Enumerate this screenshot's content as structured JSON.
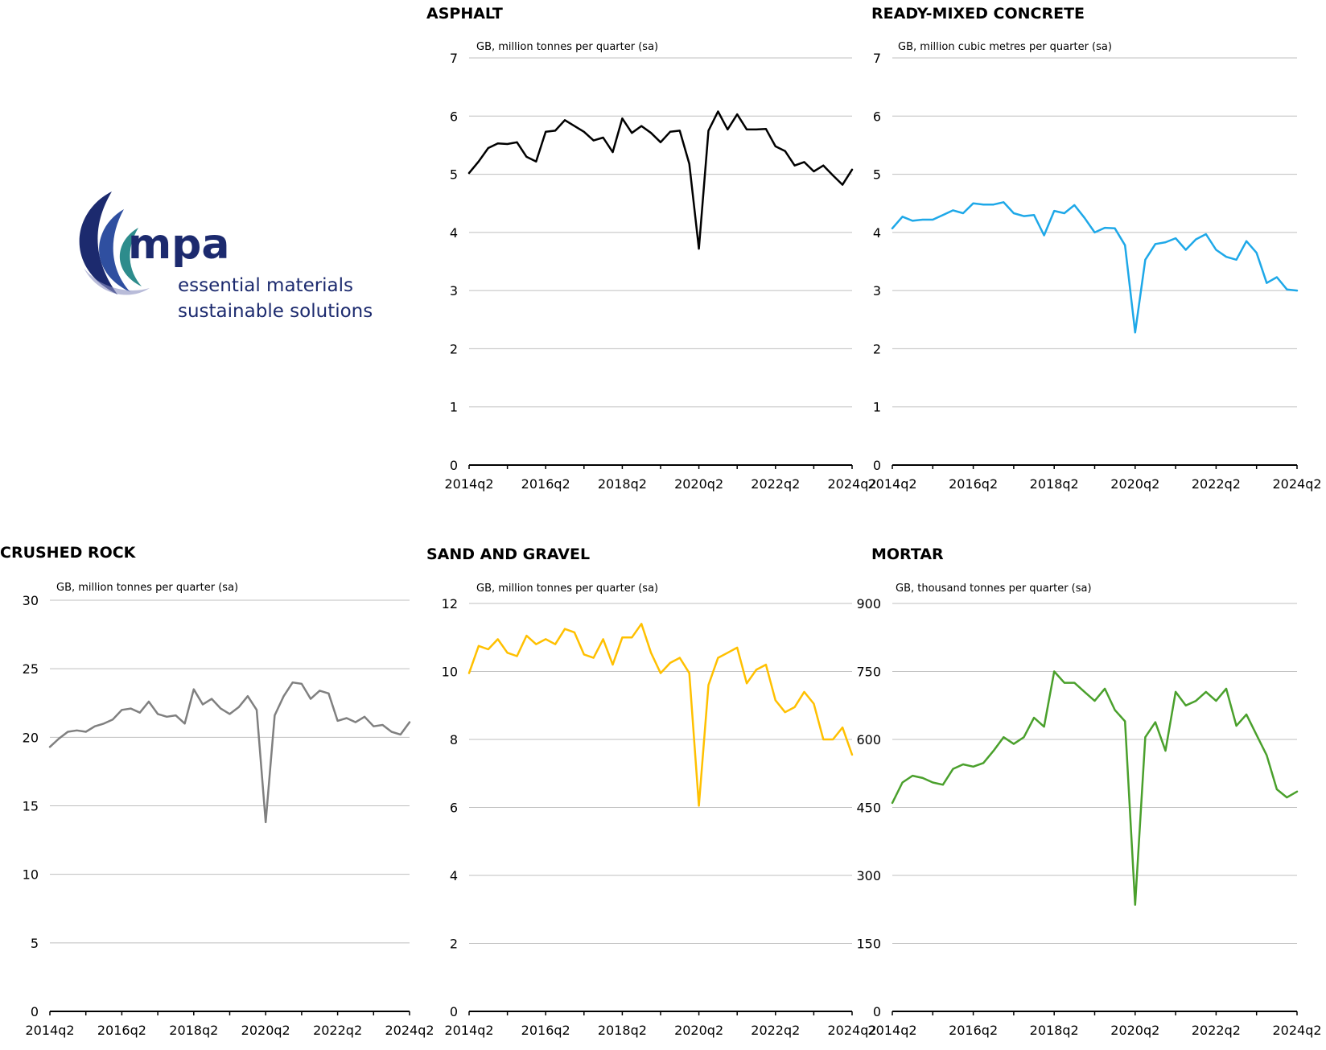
{
  "logo": {
    "wordmark": "mpa",
    "tagline_1": "essential materials",
    "tagline_2": "sustainable solutions",
    "colors": {
      "navy": "#1c2a6e",
      "teal": "#2d8c8c",
      "blue": "#2f4fa0"
    }
  },
  "chart_data": [
    {
      "id": "asphalt",
      "type": "line",
      "title": "ASPHALT",
      "subtitle": "GB, million tonnes per quarter (sa)",
      "color": "#000000",
      "ylim": [
        0,
        7
      ],
      "yticks": [
        0,
        1,
        2,
        3,
        4,
        5,
        6,
        7
      ],
      "xlabels": [
        "2014q2",
        "2016q2",
        "2018q2",
        "2020q2",
        "2022q2",
        "2024q2"
      ],
      "values": [
        5.02,
        5.22,
        5.45,
        5.53,
        5.52,
        5.55,
        5.3,
        5.22,
        5.73,
        5.75,
        5.93,
        5.83,
        5.73,
        5.58,
        5.63,
        5.38,
        5.96,
        5.71,
        5.83,
        5.71,
        5.55,
        5.73,
        5.75,
        5.18,
        3.72,
        5.75,
        6.08,
        5.77,
        6.03,
        5.77,
        5.77,
        5.78,
        5.48,
        5.4,
        5.15,
        5.21,
        5.05,
        5.15,
        4.98,
        4.82,
        5.08
      ]
    },
    {
      "id": "ready-mixed-concrete",
      "type": "line",
      "title": "READY-MIXED CONCRETE",
      "subtitle": "GB, million cubic metres per quarter (sa)",
      "color": "#1ea8e8",
      "ylim": [
        0,
        7
      ],
      "yticks": [
        0,
        1,
        2,
        3,
        4,
        5,
        6,
        7
      ],
      "xlabels": [
        "2014q2",
        "2016q2",
        "2018q2",
        "2020q2",
        "2022q2",
        "2024q2"
      ],
      "values": [
        4.07,
        4.27,
        4.2,
        4.22,
        4.22,
        4.3,
        4.38,
        4.33,
        4.5,
        4.48,
        4.48,
        4.52,
        4.33,
        4.28,
        4.3,
        3.95,
        4.37,
        4.33,
        4.47,
        4.25,
        4.0,
        4.08,
        4.07,
        3.78,
        2.28,
        3.53,
        3.8,
        3.83,
        3.9,
        3.7,
        3.88,
        3.97,
        3.7,
        3.58,
        3.53,
        3.85,
        3.65,
        3.13,
        3.23,
        3.02,
        3.0
      ]
    },
    {
      "id": "crushed-rock",
      "type": "line",
      "title": "CRUSHED ROCK",
      "subtitle": "GB, million tonnes per quarter (sa)",
      "color": "#808080",
      "ylim": [
        0,
        30
      ],
      "yticks": [
        0,
        5,
        10,
        15,
        20,
        25,
        30
      ],
      "xlabels": [
        "2014q2",
        "2016q2",
        "2018q2",
        "2020q2",
        "2022q2",
        "2024q2"
      ],
      "values": [
        19.3,
        19.9,
        20.4,
        20.5,
        20.4,
        20.8,
        21.0,
        21.3,
        22.0,
        22.1,
        21.8,
        22.6,
        21.7,
        21.5,
        21.6,
        21.0,
        23.5,
        22.4,
        22.8,
        22.1,
        21.7,
        22.2,
        23.0,
        22.0,
        13.8,
        21.6,
        23.0,
        24.0,
        23.9,
        22.8,
        23.4,
        23.2,
        21.2,
        21.4,
        21.1,
        21.5,
        20.8,
        20.9,
        20.4,
        20.2,
        21.1
      ]
    },
    {
      "id": "sand-and-gravel",
      "type": "line",
      "title": "SAND AND GRAVEL",
      "subtitle": "GB, million tonnes per quarter (sa)",
      "color": "#ffc000",
      "ylim": [
        0,
        12
      ],
      "yticks": [
        0,
        2,
        4,
        6,
        8,
        10,
        12
      ],
      "xlabels": [
        "2014q2",
        "2016q2",
        "2018q2",
        "2020q2",
        "2022q2",
        "2024q2"
      ],
      "values": [
        9.95,
        10.75,
        10.65,
        10.95,
        10.55,
        10.45,
        11.05,
        10.8,
        10.95,
        10.8,
        11.25,
        11.15,
        10.5,
        10.4,
        10.95,
        10.2,
        11.0,
        11.0,
        11.4,
        10.55,
        9.95,
        10.25,
        10.4,
        9.95,
        6.05,
        9.6,
        10.4,
        10.55,
        10.7,
        9.65,
        10.05,
        10.2,
        9.15,
        8.8,
        8.95,
        9.4,
        9.05,
        8.0,
        8.0,
        8.35,
        7.55
      ]
    },
    {
      "id": "mortar",
      "type": "line",
      "title": "MORTAR",
      "subtitle": "GB, thousand tonnes per quarter (sa)",
      "color": "#4aa02c",
      "ylim": [
        0,
        900
      ],
      "yticks": [
        0,
        150,
        300,
        450,
        600,
        750,
        900
      ],
      "xlabels": [
        "2014q2",
        "2016q2",
        "2018q2",
        "2020q2",
        "2022q2",
        "2024q2"
      ],
      "values": [
        460,
        505,
        520,
        515,
        505,
        500,
        535,
        545,
        540,
        548,
        575,
        605,
        590,
        605,
        648,
        628,
        750,
        725,
        725,
        705,
        685,
        712,
        665,
        640,
        235,
        605,
        638,
        575,
        705,
        675,
        685,
        705,
        685,
        712,
        630,
        655,
        610,
        565,
        490,
        472,
        485
      ]
    }
  ]
}
